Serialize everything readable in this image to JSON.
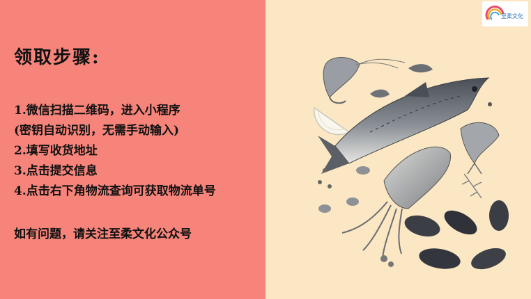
{
  "left_panel": {
    "title": "领取步骤:",
    "steps": [
      "1.微信扫描二维码，进入小程序",
      "(密钥自动识别，无需手动输入)",
      "2.填写收货地址",
      "3.点击提交信息",
      "4.点击右下角物流查询可获取物流单号"
    ],
    "note": "如有问题，请关注至柔文化公众号"
  },
  "logo": {
    "text": "至柔文化"
  },
  "colors": {
    "left_bg": "#f6847a",
    "right_bg": "#fbe7c3"
  },
  "illustration": {
    "subject": "watercolor seafood: fish, shrimp, squid, mussels, lemon slice, herbs"
  }
}
